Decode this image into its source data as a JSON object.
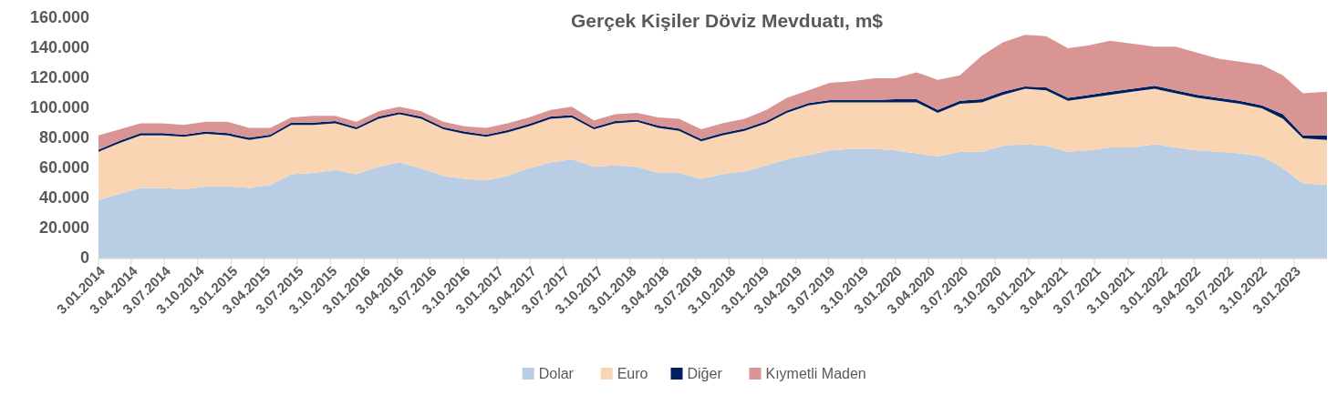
{
  "chart_data": {
    "type": "area",
    "title": "Gerçek Kişiler Döviz Mevduatı, m$",
    "stacked": true,
    "legend": "bottom",
    "grid": false,
    "x": [
      "2014-01-03",
      "2014-03-03",
      "2014-04-29",
      "2014-06-28",
      "2014-08-26",
      "2014-10-25",
      "2014-12-24",
      "2015-02-21",
      "2015-04-20",
      "2015-06-17",
      "2015-08-16",
      "2015-10-16",
      "2015-12-13",
      "2016-02-12",
      "2016-04-09",
      "2016-06-08",
      "2016-08-08",
      "2016-10-05",
      "2016-12-04",
      "2017-01-31",
      "2017-03-31",
      "2017-05-30",
      "2017-07-27",
      "2017-09-26",
      "2017-11-23",
      "2018-01-22",
      "2018-03-22",
      "2018-05-18",
      "2018-07-18",
      "2018-09-14",
      "2018-11-14",
      "2019-01-13",
      "2019-03-10",
      "2019-05-09",
      "2019-07-06",
      "2019-09-06",
      "2019-11-05",
      "2020-01-02",
      "2020-03-01",
      "2020-04-28",
      "2020-06-28",
      "2020-08-27",
      "2020-10-24",
      "2020-12-24",
      "2021-02-20",
      "2021-04-21",
      "2021-06-18",
      "2021-08-15",
      "2021-10-15",
      "2021-12-15",
      "2022-02-11",
      "2022-04-12",
      "2022-06-09",
      "2022-08-06",
      "2022-10-06",
      "2022-12-03",
      "2023-01-27",
      "2023-04-03"
    ],
    "series": [
      {
        "name": "Dolar",
        "color": "#b9cde4",
        "values": [
          39000,
          43000,
          47000,
          47000,
          46000,
          48000,
          48000,
          47000,
          49000,
          56000,
          57000,
          59000,
          56000,
          61000,
          64000,
          60000,
          55000,
          53000,
          52000,
          55000,
          60000,
          64000,
          66000,
          61000,
          62000,
          61000,
          57000,
          57000,
          53000,
          56000,
          58000,
          62000,
          66000,
          69000,
          72000,
          73000,
          73000,
          72000,
          70000,
          68000,
          71000,
          71000,
          75000,
          76000,
          75000,
          71000,
          72000,
          74000,
          74000,
          76000,
          74000,
          72000,
          71000,
          70000,
          68000,
          60000,
          50000,
          49000
        ]
      },
      {
        "name": "Euro",
        "color": "#fad5b4",
        "values": [
          32000,
          34000,
          35000,
          35000,
          35000,
          35000,
          34000,
          32000,
          32000,
          33000,
          32000,
          31000,
          30000,
          32000,
          32000,
          33000,
          31000,
          30000,
          29000,
          29000,
          28000,
          29000,
          28000,
          25000,
          28000,
          30000,
          30000,
          28000,
          25000,
          26000,
          27000,
          28000,
          31000,
          33000,
          32000,
          31000,
          31000,
          32000,
          34000,
          29000,
          32000,
          33000,
          34000,
          37000,
          37000,
          34000,
          35000,
          35000,
          37000,
          37000,
          36000,
          35000,
          34000,
          33000,
          32000,
          33000,
          30000,
          30000
        ]
      },
      {
        "name": "Diğer",
        "color": "#002060",
        "values": [
          1500,
          1500,
          1500,
          1500,
          1500,
          1500,
          1500,
          1500,
          1500,
          1500,
          1500,
          1500,
          1500,
          1500,
          1500,
          1500,
          1500,
          1500,
          1500,
          1500,
          1500,
          1500,
          1500,
          1500,
          1500,
          1500,
          1500,
          1500,
          1500,
          1500,
          1500,
          1500,
          1500,
          1500,
          1500,
          1500,
          1500,
          2000,
          2000,
          2000,
          2000,
          2000,
          2000,
          1500,
          2000,
          2000,
          2000,
          2000,
          2000,
          2000,
          2000,
          2000,
          2000,
          2000,
          2000,
          3000,
          2000,
          3000
        ]
      },
      {
        "name": "Kıymetli Maden",
        "color": "#d99594",
        "values": [
          9500,
          7500,
          6500,
          6500,
          6500,
          6500,
          7500,
          6500,
          4500,
          3500,
          4500,
          3500,
          3500,
          3500,
          3500,
          3500,
          3500,
          3500,
          4500,
          4500,
          4500,
          4500,
          5500,
          4500,
          4500,
          4500,
          5500,
          6500,
          6500,
          6500,
          6500,
          7500,
          8500,
          8500,
          11500,
          12500,
          14500,
          14000,
          18000,
          20000,
          17000,
          29000,
          33000,
          34500,
          34000,
          33000,
          33000,
          34000,
          30000,
          26000,
          29000,
          28000,
          26000,
          26000,
          27000,
          26000,
          28000,
          29000
        ]
      }
    ],
    "xlim": [
      "2014-01-03",
      "2023-04-03"
    ],
    "xticks": [
      {
        "value": "2014-01-03",
        "label": "3.01.2014"
      },
      {
        "value": "2014-04-03",
        "label": "3.04.2014"
      },
      {
        "value": "2014-07-03",
        "label": "3.07.2014"
      },
      {
        "value": "2014-10-03",
        "label": "3.10.2014"
      },
      {
        "value": "2015-01-03",
        "label": "3.01.2015"
      },
      {
        "value": "2015-04-03",
        "label": "3.04.2015"
      },
      {
        "value": "2015-07-03",
        "label": "3.07.2015"
      },
      {
        "value": "2015-10-03",
        "label": "3.10.2015"
      },
      {
        "value": "2016-01-03",
        "label": "3.01.2016"
      },
      {
        "value": "2016-04-03",
        "label": "3.04.2016"
      },
      {
        "value": "2016-07-03",
        "label": "3.07.2016"
      },
      {
        "value": "2016-10-03",
        "label": "3.10.2016"
      },
      {
        "value": "2017-01-03",
        "label": "3.01.2017"
      },
      {
        "value": "2017-04-03",
        "label": "3.04.2017"
      },
      {
        "value": "2017-07-03",
        "label": "3.07.2017"
      },
      {
        "value": "2017-10-03",
        "label": "3.10.2017"
      },
      {
        "value": "2018-01-03",
        "label": "3.01.2018"
      },
      {
        "value": "2018-04-03",
        "label": "3.04.2018"
      },
      {
        "value": "2018-07-03",
        "label": "3.07.2018"
      },
      {
        "value": "2018-10-03",
        "label": "3.10.2018"
      },
      {
        "value": "2019-01-03",
        "label": "3.01.2019"
      },
      {
        "value": "2019-04-03",
        "label": "3.04.2019"
      },
      {
        "value": "2019-07-03",
        "label": "3.07.2019"
      },
      {
        "value": "2019-10-03",
        "label": "3.10.2019"
      },
      {
        "value": "2020-01-03",
        "label": "3.01.2020"
      },
      {
        "value": "2020-04-03",
        "label": "3.04.2020"
      },
      {
        "value": "2020-07-03",
        "label": "3.07.2020"
      },
      {
        "value": "2020-10-03",
        "label": "3.10.2020"
      },
      {
        "value": "2021-01-03",
        "label": "3.01.2021"
      },
      {
        "value": "2021-04-03",
        "label": "3.04.2021"
      },
      {
        "value": "2021-07-03",
        "label": "3.07.2021"
      },
      {
        "value": "2021-10-03",
        "label": "3.10.2021"
      },
      {
        "value": "2022-01-03",
        "label": "3.01.2022"
      },
      {
        "value": "2022-04-03",
        "label": "3.04.2022"
      },
      {
        "value": "2022-07-03",
        "label": "3.07.2022"
      },
      {
        "value": "2022-10-03",
        "label": "3.10.2022"
      },
      {
        "value": "2023-01-03",
        "label": "3.01.2023"
      }
    ],
    "ylim": [
      0,
      160000
    ],
    "yticks": [
      {
        "value": 0,
        "label": "0"
      },
      {
        "value": 20000,
        "label": "20.000"
      },
      {
        "value": 40000,
        "label": "40.000"
      },
      {
        "value": 60000,
        "label": "60.000"
      },
      {
        "value": 80000,
        "label": "80.000"
      },
      {
        "value": 100000,
        "label": "100.000"
      },
      {
        "value": 120000,
        "label": "120.000"
      },
      {
        "value": 140000,
        "label": "140.000"
      },
      {
        "value": 160000,
        "label": "160.000"
      }
    ]
  }
}
